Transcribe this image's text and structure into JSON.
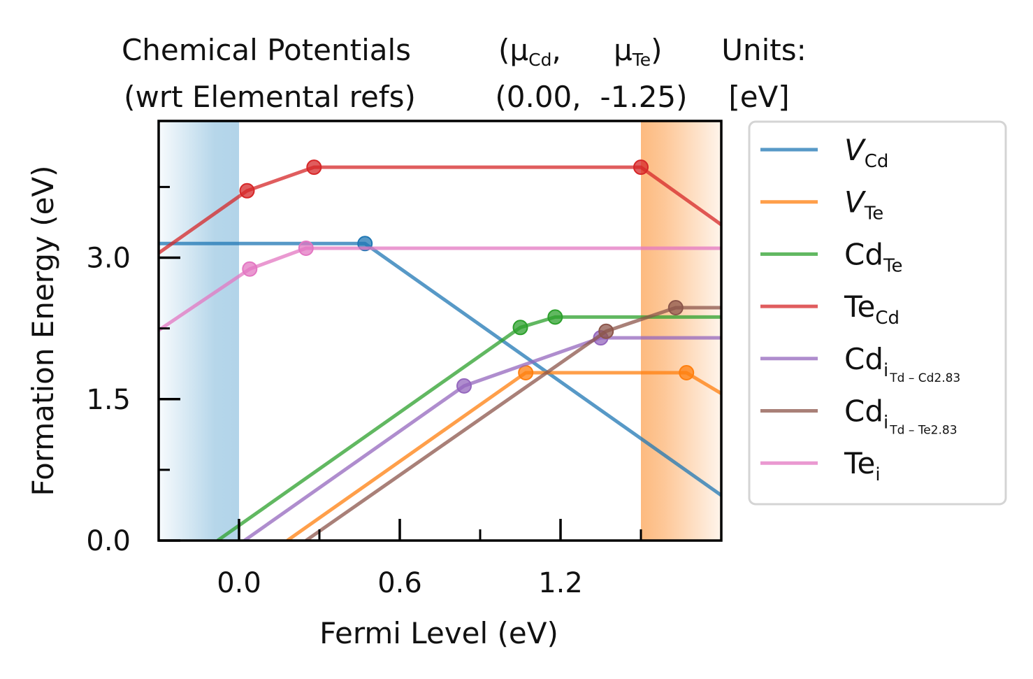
{
  "header": {
    "left_line1": "Chemical Potentials",
    "left_line2": "(wrt Elemental refs)",
    "mu_open": "(μ",
    "mu_cd_sub": "Cd",
    "mu_comma": ",",
    "mu_te": "μ",
    "mu_te_sub": "Te",
    "mu_close": ")",
    "val_cd": "(0.00,",
    "val_te": "-1.25)",
    "units_line1": "Units:",
    "units_line2": "[eV]"
  },
  "chart_data": {
    "type": "line",
    "xlabel": "Fermi Level (eV)",
    "ylabel": "Formation Energy (eV)",
    "xlim": [
      -0.3,
      1.8
    ],
    "ylim": [
      0.0,
      4.45
    ],
    "x_ticks": [
      {
        "value": 0.0,
        "label": "0.0"
      },
      {
        "value": 0.6,
        "label": "0.6"
      },
      {
        "value": 1.2,
        "label": "1.2"
      }
    ],
    "x_minor_ticks": [
      0.3,
      0.9,
      1.5
    ],
    "y_ticks": [
      {
        "value": 0.0,
        "label": "0.0"
      },
      {
        "value": 1.5,
        "label": "1.5"
      },
      {
        "value": 3.0,
        "label": "3.0"
      }
    ],
    "y_minor_ticks": [
      0.75,
      2.25,
      3.75
    ],
    "vbm": 0.0,
    "cbm": 1.5,
    "vbm_color": "#b2d4e9",
    "cbm_color": "#fdba7f",
    "legend_position": "outside-right",
    "series": [
      {
        "name": "V",
        "sub": "Cd",
        "subsub": "",
        "italic": true,
        "color": "#1f77b4",
        "points": [
          [
            -0.3,
            3.15
          ],
          [
            0.47,
            3.15
          ],
          [
            1.8,
            0.48
          ]
        ],
        "markers": [
          [
            0.47,
            3.15
          ]
        ]
      },
      {
        "name": "V",
        "sub": "Te",
        "subsub": "",
        "italic": true,
        "color": "#ff7f0e",
        "points": [
          [
            0.18,
            0.0
          ],
          [
            1.07,
            1.78
          ],
          [
            1.67,
            1.78
          ],
          [
            1.8,
            1.56
          ]
        ],
        "markers": [
          [
            1.07,
            1.78
          ],
          [
            1.67,
            1.78
          ]
        ]
      },
      {
        "name": "Cd",
        "sub": "Te",
        "subsub": "",
        "italic": false,
        "color": "#2ca02c",
        "points": [
          [
            -0.08,
            0.0
          ],
          [
            1.05,
            2.26
          ],
          [
            1.18,
            2.37
          ],
          [
            1.8,
            2.37
          ]
        ],
        "markers": [
          [
            1.05,
            2.26
          ],
          [
            1.18,
            2.37
          ]
        ]
      },
      {
        "name": "Te",
        "sub": "Cd",
        "subsub": "",
        "italic": false,
        "color": "#d62728",
        "points": [
          [
            -0.3,
            3.05
          ],
          [
            0.03,
            3.71
          ],
          [
            0.28,
            3.96
          ],
          [
            1.5,
            3.96
          ],
          [
            1.8,
            3.35
          ]
        ],
        "markers": [
          [
            0.03,
            3.71
          ],
          [
            0.28,
            3.96
          ],
          [
            1.5,
            3.96
          ]
        ]
      },
      {
        "name": "Cd",
        "sub": "i",
        "subsub": "Td – Cd2.83",
        "italic": false,
        "color": "#9467bd",
        "points": [
          [
            0.02,
            0.0
          ],
          [
            0.84,
            1.64
          ],
          [
            1.35,
            2.15
          ],
          [
            1.8,
            2.15
          ]
        ],
        "markers": [
          [
            0.84,
            1.64
          ],
          [
            1.35,
            2.15
          ]
        ]
      },
      {
        "name": "Cd",
        "sub": "i",
        "subsub": "Td – Te2.83",
        "italic": false,
        "color": "#8c564b",
        "points": [
          [
            0.25,
            0.0
          ],
          [
            1.37,
            2.22
          ],
          [
            1.63,
            2.47
          ],
          [
            1.8,
            2.47
          ]
        ],
        "markers": [
          [
            1.37,
            2.22
          ],
          [
            1.63,
            2.47
          ]
        ]
      },
      {
        "name": "Te",
        "sub": "i",
        "subsub": "",
        "italic": false,
        "color": "#e377c2",
        "points": [
          [
            -0.3,
            2.23
          ],
          [
            0.04,
            2.88
          ],
          [
            0.25,
            3.1
          ],
          [
            1.8,
            3.1
          ]
        ],
        "markers": [
          [
            0.04,
            2.88
          ],
          [
            0.25,
            3.1
          ]
        ]
      }
    ]
  }
}
